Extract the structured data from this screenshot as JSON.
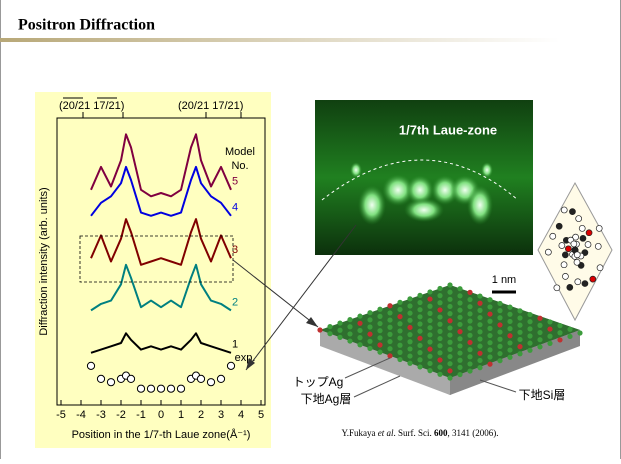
{
  "header": {
    "title": "Positron Diffraction"
  },
  "chart_data": {
    "type": "line",
    "ylabel": "Diffraction intensity (arb. units)",
    "xlabel": "Position in the 1/7-th Laue zone(Å⁻¹)",
    "top_labels": [
      "(20/21 17/21)",
      "(20/21 17/21)"
    ],
    "legend_title": [
      "Model",
      "No."
    ],
    "xlim": [
      -5.2,
      5.2
    ],
    "xticks": [
      -5,
      -4,
      -3,
      -2,
      -1,
      0,
      1,
      2,
      3,
      4,
      5
    ],
    "ylim": [
      0.7,
      9.5
    ],
    "x": [
      -3.5,
      -3,
      -2.5,
      -2,
      -1.75,
      -1.5,
      -1,
      -0.5,
      0,
      0.5,
      1,
      1.5,
      1.75,
      2,
      2.5,
      3,
      3.5
    ],
    "series": [
      {
        "name": "5",
        "color": "#800040",
        "mode": "line",
        "values": [
          7.3,
          8.0,
          7.4,
          8.2,
          9.0,
          8.6,
          7.3,
          7.1,
          7.2,
          7.1,
          7.3,
          8.6,
          9.0,
          8.2,
          7.4,
          8.0,
          7.3
        ]
      },
      {
        "name": "4",
        "color": "#0000e0",
        "mode": "line",
        "values": [
          6.5,
          6.9,
          7.1,
          7.5,
          8.0,
          7.6,
          6.6,
          6.5,
          6.6,
          6.5,
          6.6,
          7.6,
          8.0,
          7.5,
          7.1,
          6.9,
          6.5
        ]
      },
      {
        "name": "3",
        "color": "#800000",
        "mode": "line",
        "values": [
          5.2,
          5.9,
          5.1,
          5.8,
          6.4,
          6.0,
          5.0,
          5.1,
          5.2,
          5.1,
          5.0,
          6.0,
          6.4,
          5.8,
          5.1,
          5.9,
          5.2
        ]
      },
      {
        "name": "2",
        "color": "#008080",
        "mode": "line",
        "values": [
          3.6,
          3.8,
          3.9,
          4.4,
          5.0,
          4.6,
          3.7,
          3.9,
          3.7,
          3.9,
          3.7,
          4.6,
          5.0,
          4.4,
          3.9,
          3.8,
          3.6
        ]
      },
      {
        "name": "1",
        "color": "#000000",
        "mode": "line",
        "values": [
          2.3,
          2.4,
          2.5,
          2.6,
          2.9,
          2.7,
          2.4,
          2.5,
          2.4,
          2.5,
          2.4,
          2.7,
          2.9,
          2.6,
          2.5,
          2.4,
          2.3
        ]
      },
      {
        "name": "exp.",
        "color": "#000000",
        "mode": "markers",
        "values": [
          1.9,
          1.5,
          1.4,
          1.5,
          1.6,
          1.5,
          1.2,
          1.2,
          1.2,
          1.2,
          1.2,
          1.5,
          1.6,
          1.5,
          1.4,
          1.5,
          1.9
        ]
      }
    ]
  },
  "figure": {
    "laue_label": "1/7th  Laue-zone",
    "scale_bar": "1 nm",
    "top_ag": "トップAg",
    "sub_ag": "下地Ag層",
    "sub_si": "下地Si層"
  },
  "citation": {
    "authors": "Y.Fukaya ",
    "etal": "et al",
    "journal": ". Surf. Sci. ",
    "volume": "600",
    "pages": ", 3141 (2006)."
  }
}
